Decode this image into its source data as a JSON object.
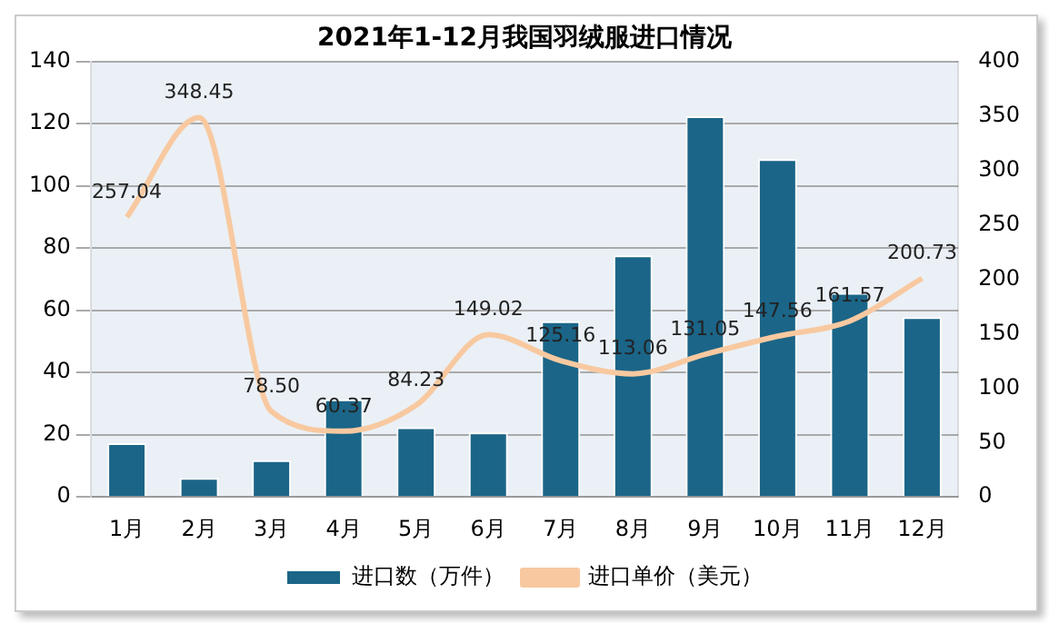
{
  "chart_data": {
    "type": "bar",
    "title": "2021年1-12月我国羽绒服进口情况",
    "categories": [
      "1月",
      "2月",
      "3月",
      "4月",
      "5月",
      "6月",
      "7月",
      "8月",
      "9月",
      "10月",
      "11月",
      "12月"
    ],
    "series": [
      {
        "name": "进口数（万件）",
        "type": "bar",
        "color": "#1b6588",
        "values": [
          17.3,
          6.1,
          11.8,
          31.4,
          22.4,
          20.7,
          56.5,
          77.6,
          122.4,
          108.6,
          65.6,
          57.8
        ]
      },
      {
        "name": "进口单价（美元）",
        "type": "line",
        "axis": "y2",
        "color": "#f8c9a0",
        "values": [
          257.04,
          348.45,
          78.5,
          60.37,
          84.23,
          149.02,
          125.16,
          113.06,
          131.05,
          147.56,
          161.57,
          200.73
        ],
        "value_labels": [
          "257.04",
          "348.45",
          "78.50",
          "60.37",
          "84.23",
          "149.02",
          "125.16",
          "113.06",
          "131.05",
          "147.56",
          "161.57",
          "200.73"
        ]
      }
    ],
    "ylim": [
      0,
      140
    ],
    "yticks": [
      0,
      20,
      40,
      60,
      80,
      100,
      120,
      140
    ],
    "y2lim": [
      0,
      400
    ],
    "y2ticks": [
      0,
      50,
      100,
      150,
      200,
      250,
      300,
      350,
      400
    ],
    "grid": "y",
    "legend": "bottom",
    "marker": "none"
  }
}
